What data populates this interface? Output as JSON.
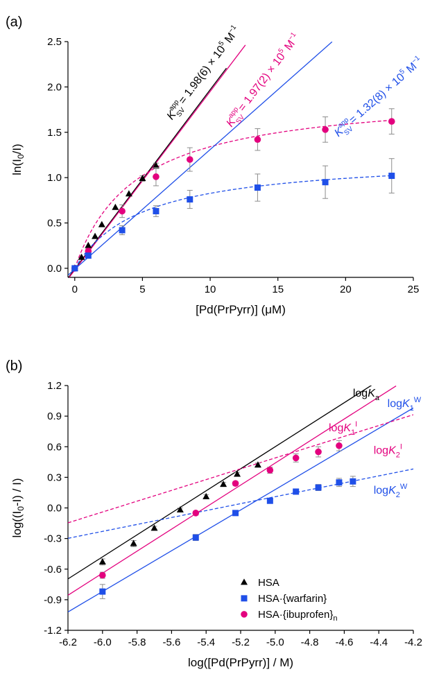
{
  "colors": {
    "black": "#000000",
    "magenta": "#e3007e",
    "blue": "#1f4fe8",
    "error": "#8c8c8c"
  },
  "chart_data": [
    {
      "panel_label": "(a)",
      "type": "scatter",
      "xlabel_parts": [
        "[Pd(PrPyrr)] (",
        "μ",
        "M)"
      ],
      "ylabel_parts": [
        "ln(I",
        "0",
        "/I)"
      ],
      "xlim": [
        -0.5,
        25
      ],
      "ylim": [
        -0.1,
        2.5
      ],
      "xticks": [
        0,
        5,
        10,
        15,
        20,
        25
      ],
      "xtick_labels": [
        "0",
        "5",
        "10",
        "15",
        "20",
        "25"
      ],
      "yticks": [
        0.0,
        0.5,
        1.0,
        1.5,
        2.0,
        2.5
      ],
      "ytick_labels": [
        "0.0",
        "0.5",
        "1.0",
        "1.5",
        "2.0",
        "2.5"
      ],
      "grid": false,
      "series": [
        {
          "key": "hsa",
          "color_key": "black",
          "marker": "triangle",
          "x": [
            0,
            0.5,
            1.0,
            1.5,
            2.0,
            3.0,
            4.0,
            5.0,
            6.0
          ],
          "y": [
            0.0,
            0.12,
            0.25,
            0.35,
            0.48,
            0.67,
            0.82,
            0.99,
            1.13
          ],
          "err": [
            0,
            0,
            0,
            0,
            0,
            0,
            0,
            0.03,
            0.03
          ],
          "fit": {
            "style": "solid",
            "slope": 0.198,
            "intercept": -0.01,
            "x_range": [
              -0.5,
              11.2
            ]
          }
        },
        {
          "key": "ibuprofen",
          "color_key": "magenta",
          "marker": "circle",
          "x": [
            0,
            1.0,
            3.5,
            6.0,
            8.5,
            13.5,
            18.5,
            23.4
          ],
          "y": [
            0.0,
            0.19,
            0.63,
            1.01,
            1.2,
            1.42,
            1.53,
            1.62
          ],
          "err": [
            0,
            0.03,
            0.07,
            0.1,
            0.13,
            0.12,
            0.14,
            0.14
          ],
          "fit": {
            "style": "solid",
            "slope": 0.197,
            "intercept": -0.02,
            "x_range": [
              -0.5,
              12.6
            ]
          },
          "curve": {
            "style": "dashed",
            "amax": 1.95,
            "k": 0.22,
            "x_range": [
              0,
              23.4
            ]
          }
        },
        {
          "key": "warfarin",
          "color_key": "blue",
          "marker": "square",
          "x": [
            0,
            1.0,
            3.5,
            6.0,
            8.5,
            13.5,
            18.5,
            23.4
          ],
          "y": [
            0.0,
            0.14,
            0.42,
            0.63,
            0.76,
            0.89,
            0.95,
            1.02
          ],
          "err": [
            0,
            0,
            0.05,
            0.06,
            0.1,
            0.15,
            0.18,
            0.19
          ],
          "fit": {
            "style": "solid",
            "slope": 0.132,
            "intercept": -0.01,
            "x_range": [
              -0.5,
              19.0
            ]
          },
          "curve": {
            "style": "dashed",
            "amax": 1.24,
            "k": 0.2,
            "x_range": [
              0,
              23.4
            ]
          }
        }
      ],
      "annotations": [
        {
          "color_key": "black",
          "value": "1.98(6)",
          "x": 9.7,
          "y": 2.13
        },
        {
          "color_key": "magenta",
          "value": "1.97(2)",
          "x": 14.1,
          "y": 2.05
        },
        {
          "color_key": "blue",
          "value": "1.32(8)",
          "x": 22.6,
          "y": 1.86
        }
      ],
      "ann_symbol": "K",
      "ann_sub": "SV",
      "ann_sup": "app",
      "ann_times": "× 10",
      "ann_exp": "5",
      "ann_unit": "M",
      "ann_unit_exp": "−1"
    },
    {
      "panel_label": "(b)",
      "type": "scatter",
      "xlabel": "log([Pd(PrPyrr)] / M)",
      "ylabel_parts": [
        "log((I",
        "0",
        "-I) / I)"
      ],
      "xlim": [
        -6.2,
        -4.2
      ],
      "ylim": [
        -1.2,
        1.2
      ],
      "xticks": [
        -6.2,
        -6.0,
        -5.8,
        -5.6,
        -5.4,
        -5.2,
        -5.0,
        -4.8,
        -4.6,
        -4.4,
        -4.2
      ],
      "xtick_labels": [
        "-6.2",
        "-6.0",
        "-5.8",
        "-5.6",
        "-5.4",
        "-5.2",
        "-5.0",
        "-4.8",
        "-4.6",
        "-4.4",
        "-4.2"
      ],
      "yticks": [
        -1.2,
        -0.9,
        -0.6,
        -0.3,
        0.0,
        0.3,
        0.6,
        0.9,
        1.2
      ],
      "ytick_labels": [
        "-1.2",
        "-0.9",
        "-0.6",
        "-0.3",
        "0.0",
        "0.3",
        "0.6",
        "0.9",
        "1.2"
      ],
      "grid": false,
      "series": [
        {
          "name": "HSA",
          "key": "hsa",
          "color_key": "black",
          "marker": "triangle",
          "x": [
            -6.0,
            -5.82,
            -5.7,
            -5.55,
            -5.4,
            -5.3,
            -5.22,
            -5.1
          ],
          "y": [
            -0.53,
            -0.35,
            -0.2,
            -0.02,
            0.11,
            0.23,
            0.33,
            0.42
          ],
          "err": [
            0.03,
            0.03,
            0.02,
            0.02,
            0.02,
            0.02,
            0.02,
            0.02
          ],
          "fit": {
            "style": "solid",
            "slope": 1.08,
            "intercept": 6.0,
            "x_range": [
              -6.2,
              -4.37
            ]
          }
        },
        {
          "name": "HSA·{warfarin}",
          "key": "warfarin",
          "color_key": "blue",
          "marker": "square",
          "x": [
            -6.0,
            -5.46,
            -5.23,
            -5.03,
            -4.88,
            -4.75,
            -4.63,
            -4.55
          ],
          "y": [
            -0.82,
            -0.29,
            -0.05,
            0.07,
            0.16,
            0.2,
            0.25,
            0.26
          ],
          "err": [
            0.07,
            0.03,
            0.02,
            0.02,
            0.02,
            0.03,
            0.04,
            0.05
          ],
          "fit": {
            "style": "solid",
            "slope": 1.0,
            "intercept": 5.18,
            "x_range": [
              -6.2,
              -4.2
            ]
          },
          "fit2": {
            "style": "dashed",
            "slope": 0.34,
            "intercept": 1.81,
            "x_range": [
              -6.2,
              -4.2
            ]
          }
        },
        {
          "name": "HSA·{ibuprofen}n",
          "name_parts": [
            "HSA·{ibuprofen}",
            "n"
          ],
          "key": "ibuprofen",
          "color_key": "magenta",
          "marker": "circle",
          "x": [
            -6.0,
            -5.46,
            -5.23,
            -5.03,
            -4.88,
            -4.75,
            -4.63
          ],
          "y": [
            -0.66,
            -0.05,
            0.24,
            0.37,
            0.49,
            0.55,
            0.61
          ],
          "err": [
            0.03,
            0.02,
            0.02,
            0.03,
            0.04,
            0.05,
            0.05
          ],
          "fit": {
            "style": "solid",
            "slope": 1.08,
            "intercept": 5.84,
            "x_range": [
              -6.2,
              -4.3
            ]
          },
          "fit2": {
            "style": "dashed",
            "slope": 0.53,
            "intercept": 3.14,
            "x_range": [
              -6.2,
              -4.2
            ]
          }
        }
      ],
      "line_labels": [
        {
          "color_key": "black",
          "prefix": "log",
          "sym": "K",
          "sub": "a",
          "sup": "",
          "x": -4.55,
          "y": 1.09
        },
        {
          "color_key": "magenta",
          "prefix": "log",
          "sym": "K",
          "sub": "1",
          "sup": "I",
          "x": -4.69,
          "y": 0.75
        },
        {
          "color_key": "magenta",
          "prefix": "log",
          "sym": "K",
          "sub": "2",
          "sup": "I",
          "x": -4.43,
          "y": 0.53
        },
        {
          "color_key": "blue",
          "prefix": "log",
          "sym": "K",
          "sub": "1",
          "sup": "W",
          "x": -4.35,
          "y": 0.99
        },
        {
          "color_key": "blue",
          "prefix": "log",
          "sym": "K",
          "sub": "2",
          "sup": "W",
          "x": -4.43,
          "y": 0.14
        }
      ],
      "legend_position": "bottom-right"
    }
  ]
}
